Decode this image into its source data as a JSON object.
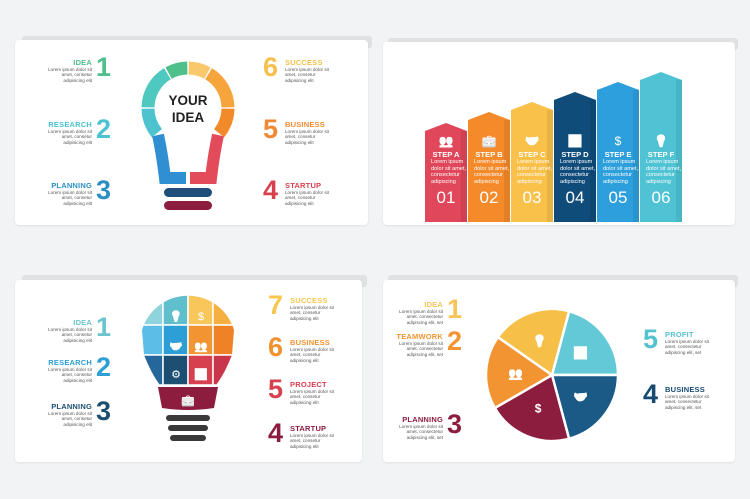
{
  "lorem": "Lorem ipsum dolor sit amet, consetur adipisicing elit",
  "slide1": {
    "center_text": [
      "YOUR",
      "IDEA"
    ],
    "items": [
      {
        "num": "1",
        "label": "IDEA",
        "color": "#4fbf8b",
        "side": "l"
      },
      {
        "num": "2",
        "label": "RESEARCH",
        "color": "#4cc3cf",
        "side": "l"
      },
      {
        "num": "3",
        "label": "PLANNING",
        "color": "#2a8fc1",
        "side": "l"
      },
      {
        "num": "6",
        "label": "SUCCESS",
        "color": "#f5c04e",
        "side": "r"
      },
      {
        "num": "5",
        "label": "BUSINESS",
        "color": "#f08a32",
        "side": "r"
      },
      {
        "num": "4",
        "label": "STARTUP",
        "color": "#d8404f",
        "side": "r"
      }
    ]
  },
  "slide2": {
    "steps": [
      {
        "title": "STEP A",
        "num": "01",
        "color": "#e0475a",
        "icon": "people-icon"
      },
      {
        "title": "STEP B",
        "num": "02",
        "color": "#f58a2b",
        "icon": "briefcase-icon"
      },
      {
        "title": "STEP C",
        "num": "03",
        "color": "#f9c04a",
        "icon": "handshake-icon"
      },
      {
        "title": "STEP D",
        "num": "04",
        "color": "#0f4c7a",
        "icon": "bar-chart-icon"
      },
      {
        "title": "STEP E",
        "num": "05",
        "color": "#2d9fdc",
        "icon": "dollar-icon"
      },
      {
        "title": "STEP F",
        "num": "06",
        "color": "#4fc3d3",
        "icon": "lightbulb-icon"
      }
    ],
    "step_body": "Lorem ipsum dolor sit amet, consectetur adipiscing"
  },
  "slide3": {
    "items": [
      {
        "num": "1",
        "label": "IDEA",
        "color": "#6cc4cf",
        "side": "l"
      },
      {
        "num": "2",
        "label": "RESEARCH",
        "color": "#2c9fd6",
        "side": "l"
      },
      {
        "num": "3",
        "label": "PLANNING",
        "color": "#1c4f72",
        "side": "l"
      },
      {
        "num": "7",
        "label": "SUCCESS",
        "color": "#f7c64e",
        "side": "r"
      },
      {
        "num": "6",
        "label": "BUSINESS",
        "color": "#f0922f",
        "side": "r"
      },
      {
        "num": "5",
        "label": "PROJECT",
        "color": "#d7404f",
        "side": "r"
      },
      {
        "num": "4",
        "label": "STARTUP",
        "color": "#8c1d3e",
        "side": "r"
      }
    ]
  },
  "slide4": {
    "body": "Lorem ipsum dolor sit amet, consectetur adipiscing elit, set",
    "items": [
      {
        "num": "1",
        "label": "IDEA",
        "color": "#f6c556",
        "side": "l"
      },
      {
        "num": "2",
        "label": "TEAMWORK",
        "color": "#f39433",
        "side": "l"
      },
      {
        "num": "3",
        "label": "PLANNING",
        "color": "#8c1d3e",
        "side": "l"
      },
      {
        "num": "5",
        "label": "PROFIT",
        "color": "#54c2cf",
        "side": "r"
      },
      {
        "num": "4",
        "label": "BUSINESS",
        "color": "#164a72",
        "side": "r"
      }
    ]
  }
}
